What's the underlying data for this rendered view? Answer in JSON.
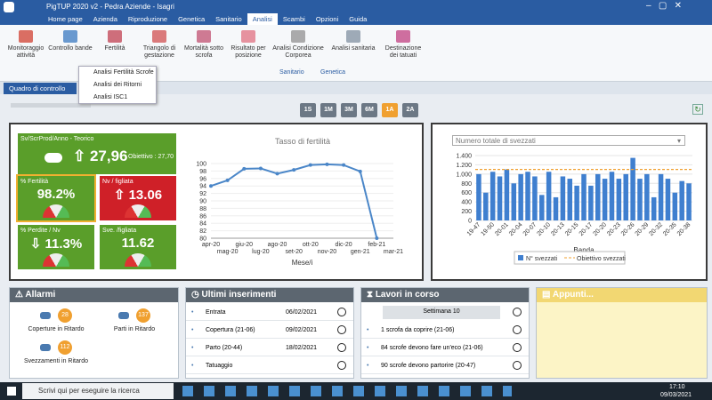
{
  "window": {
    "title": "PigTUP 2020 v2 - Pedra Aziende - Isagri"
  },
  "menu": {
    "items": [
      "Home page",
      "Azienda",
      "Riproduzione",
      "Genetica",
      "Sanitario",
      "Analisi",
      "Scambi",
      "Opzioni",
      "Guida"
    ],
    "active": 5
  },
  "ribbon": {
    "buttons": [
      "Monitoraggio attività",
      "Controllo bande",
      "Fertilità",
      "Triangolo di gestazione",
      "Mortalità sotto scrofa",
      "Risultato per posizione",
      "Analisi Condizione Corporea",
      "Analisi sanitaria",
      "Destinazione dei tatuati"
    ],
    "groups": [
      "Sanitario",
      "Genetica"
    ]
  },
  "dropdown": [
    "Analisi Fertilità Scrofe",
    "Analisi dei Ritorni",
    "Analisi ISC1"
  ],
  "tab": "Quadro di controllo",
  "periods": {
    "items": [
      "1S",
      "1M",
      "3M",
      "6M",
      "1A",
      "2A"
    ],
    "active": 4
  },
  "kpis": {
    "main": {
      "label": "Sv/ScrProd/Anno - Teorico",
      "value": "27,96",
      "target": "Obiettivo : 27,70"
    },
    "tiles": [
      {
        "label": "% Fertilità",
        "value": "98.2%",
        "color": "#5a9e2a"
      },
      {
        "label": "Nv / figliata",
        "value": "13.06",
        "color": "#cf2028"
      },
      {
        "label": "% Perdite / Nv",
        "value": "11.3%",
        "color": "#5a9e2a"
      },
      {
        "label": "Sve. /figliata",
        "value": "11.62",
        "color": "#5a9e2a"
      }
    ]
  },
  "fertility_chart": {
    "type": "line",
    "title": "Tasso di fertilità",
    "x_label": "Mese/i",
    "categories": [
      "apr-20",
      "mag-20",
      "giu-20",
      "lug-20",
      "ago-20",
      "set-20",
      "ott-20",
      "nov-20",
      "dic-20",
      "gen-21",
      "feb-21",
      "mar-21"
    ],
    "values": [
      94,
      95.5,
      98.6,
      98.7,
      97.3,
      98.3,
      99.6,
      99.8,
      99.6,
      97.9,
      80,
      null
    ],
    "color": "#4a86c8",
    "ylim": [
      80,
      100
    ],
    "yticks": [
      80,
      82,
      84,
      86,
      88,
      90,
      92,
      94,
      96,
      98,
      100
    ],
    "grid": true
  },
  "weaned_chart": {
    "type": "bar",
    "title": "Numero totale di svezzati",
    "x_label": "Banda",
    "categories": [
      "19-47",
      null,
      "19-50",
      null,
      "20-01",
      null,
      "20-04",
      null,
      "20-07",
      null,
      "20-10",
      null,
      "20-13",
      null,
      "20-15",
      null,
      "20-17",
      null,
      "20-20",
      null,
      "20-23",
      null,
      "20-26",
      null,
      "20-29",
      null,
      "20-32",
      null,
      "20-35",
      null,
      "20-38"
    ],
    "series": [
      {
        "name": "N° svezzati",
        "color": "#3f7fcf",
        "values": [
          1000,
          600,
          1050,
          950,
          1100,
          800,
          1000,
          1050,
          950,
          550,
          1050,
          500,
          950,
          900,
          750,
          1000,
          750,
          1000,
          900,
          1050,
          900,
          1000,
          1350,
          900,
          1000,
          500,
          1000,
          900,
          600,
          850,
          800
        ]
      }
    ],
    "target": {
      "name": "Obiettivo svezzati",
      "value": 1100,
      "color": "#f0a030"
    },
    "ylim": [
      0,
      1400
    ],
    "yticks": [
      0,
      200,
      400,
      600,
      800,
      {
        "value": 1000,
        "label": "1.000"
      },
      {
        "value": 1200,
        "label": "1.200"
      },
      {
        "value": 1400,
        "label": "1.400"
      }
    ],
    "grid": true
  },
  "alarms": {
    "title": "Allarmi",
    "items": [
      {
        "label": "Coperture in Ritardo",
        "count": 28
      },
      {
        "label": "Parti in Ritardo",
        "count": 137
      },
      {
        "label": "Svezzamenti in Ritardo",
        "count": 112
      }
    ]
  },
  "recent": {
    "title": "Ultimi inserimenti",
    "rows": [
      {
        "label": "Entrata",
        "date": "06/02/2021"
      },
      {
        "label": "Copertura (21-06)",
        "date": "09/02/2021"
      },
      {
        "label": "Parto (20-44)",
        "date": "18/02/2021"
      },
      {
        "label": "Tatuaggio"
      }
    ]
  },
  "works": {
    "title": "Lavori in corso",
    "week": "Settimana 10",
    "rows": [
      "1 scrofa da coprire (21-06)",
      "84 scrofe devono fare un'eco (21-06)",
      "90 scrofe devono partorire (20-47)"
    ]
  },
  "notes": {
    "title": "Appunti..."
  },
  "taskbar": {
    "search": "Scrivi qui per eseguire la ricerca",
    "time": "17:10",
    "date": "09/03/2021"
  }
}
